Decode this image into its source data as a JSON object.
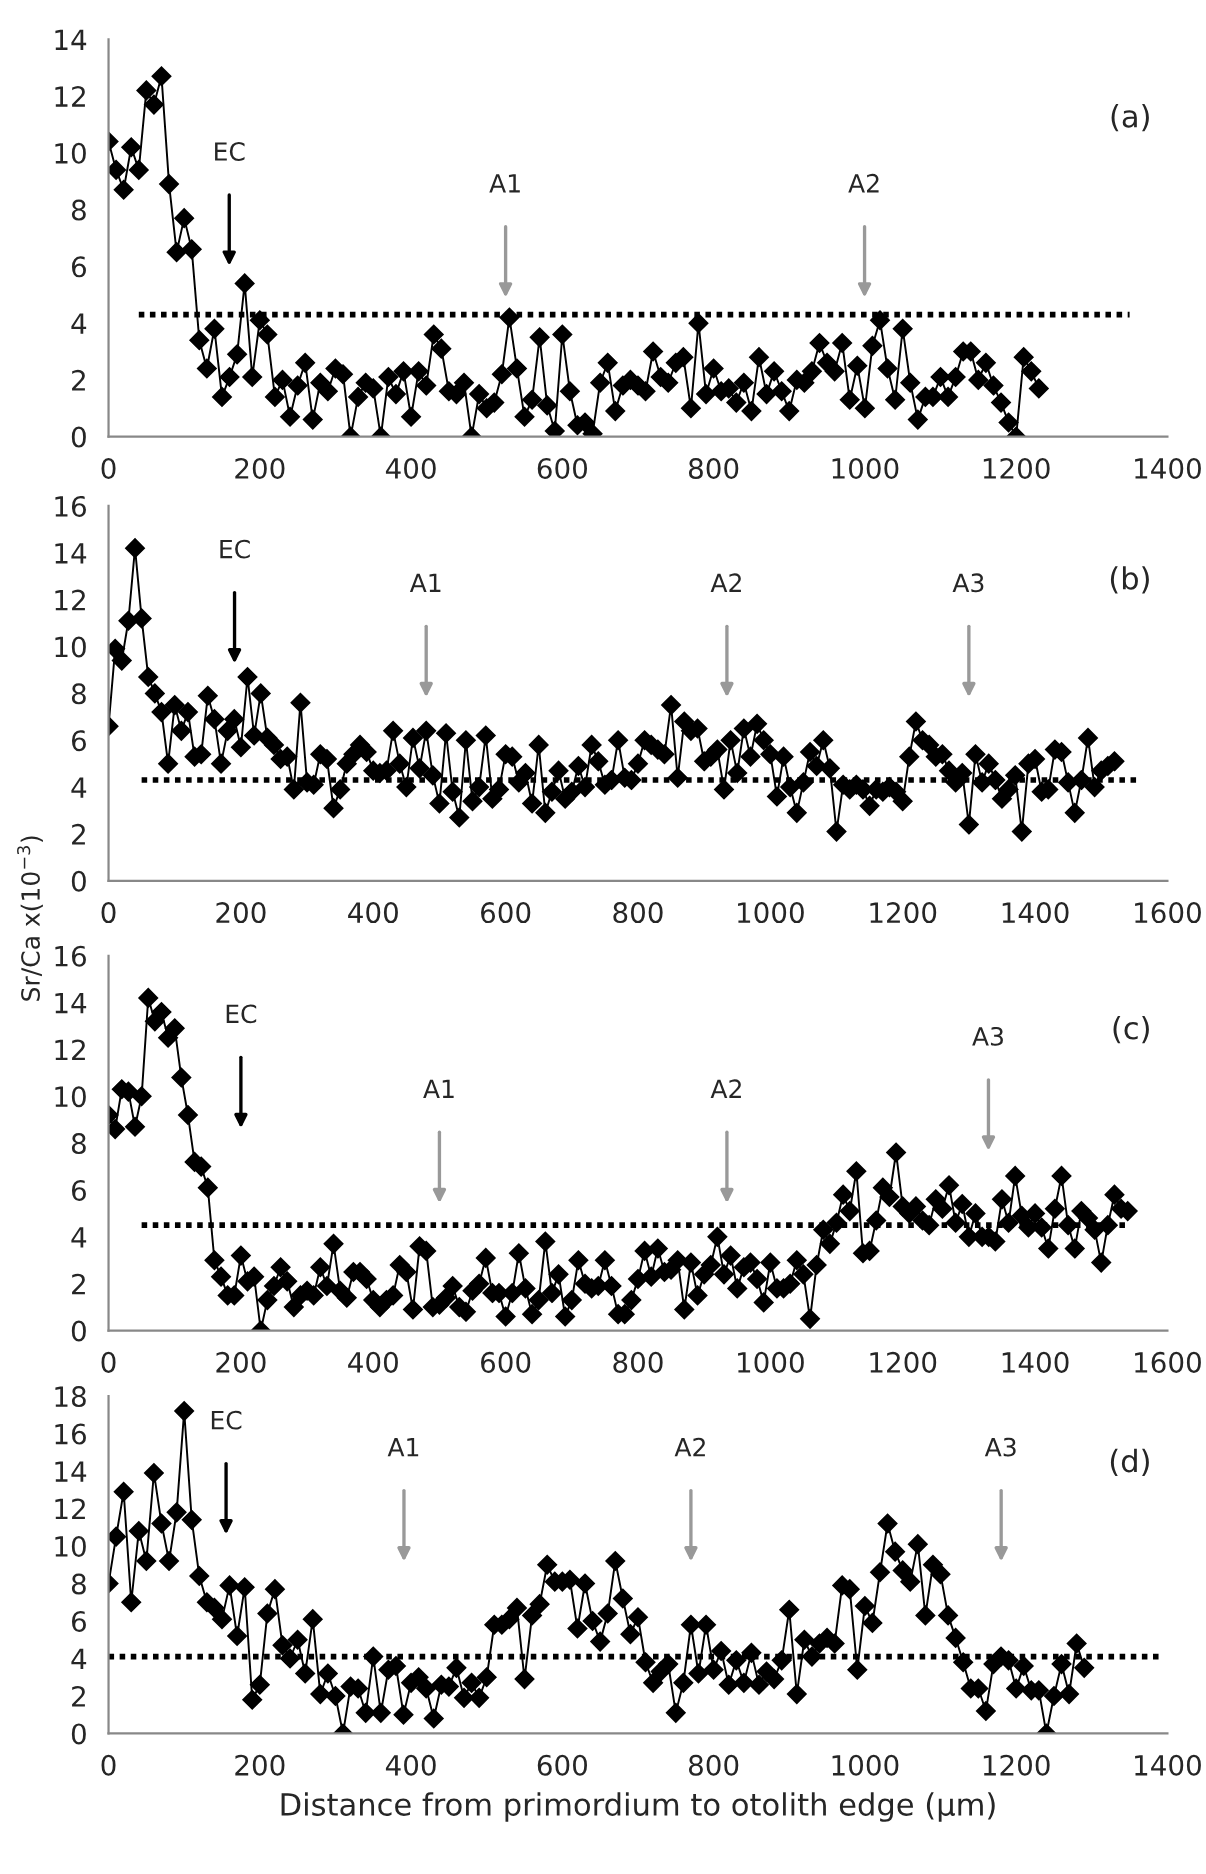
{
  "chart_data": [
    {
      "type": "line",
      "xlim": [
        0,
        1400
      ],
      "xticks": [
        0,
        200,
        400,
        600,
        800,
        1000,
        1200,
        1400
      ],
      "ylim": [
        0,
        14
      ],
      "yticks": [
        0,
        2,
        4,
        6,
        8,
        10,
        12,
        14
      ],
      "grid": false,
      "legend": false,
      "series": [
        {
          "color": "#000000",
          "marker": "diamond",
          "line_style": "solid",
          "x": [
            0,
            10,
            20,
            30,
            40,
            50,
            60,
            70,
            80,
            90,
            100,
            110,
            120,
            130,
            140,
            150,
            160,
            170,
            180,
            190,
            200,
            210,
            220,
            230,
            240,
            250,
            260,
            270,
            280,
            290,
            300,
            310,
            320,
            330,
            340,
            350,
            360,
            370,
            380,
            390,
            400,
            410,
            420,
            430,
            440,
            450,
            460,
            470,
            480,
            490,
            500,
            510,
            520,
            530,
            540,
            550,
            560,
            570,
            580,
            590,
            600,
            610,
            620,
            630,
            640,
            650,
            660,
            670,
            680,
            690,
            700,
            710,
            720,
            730,
            740,
            750,
            760,
            770,
            780,
            790,
            800,
            810,
            820,
            830,
            840,
            850,
            860,
            870,
            880,
            890,
            900,
            910,
            920,
            930,
            940,
            950,
            960,
            970,
            980,
            990,
            1000,
            1010,
            1020,
            1030,
            1040,
            1050,
            1060,
            1070,
            1080,
            1090,
            1100,
            1110,
            1120,
            1130,
            1140,
            1150,
            1160,
            1170,
            1180,
            1190,
            1200,
            1210,
            1220,
            1230
          ],
          "values": [
            10.4,
            9.4,
            8.7,
            10.2,
            9.4,
            12.2,
            11.7,
            12.7,
            8.9,
            6.5,
            7.7,
            6.6,
            3.4,
            2.4,
            3.8,
            1.4,
            2.1,
            2.9,
            5.4,
            2.1,
            4.1,
            3.6,
            1.4,
            2.0,
            0.7,
            1.8,
            2.6,
            0.6,
            1.9,
            1.6,
            2.4,
            2.2,
            0,
            1.4,
            1.9,
            1.7,
            0,
            2.1,
            1.5,
            2.3,
            0.7,
            2.3,
            1.8,
            3.6,
            3.1,
            1.6,
            1.5,
            1.9,
            0,
            1.5,
            1.0,
            1.2,
            2.2,
            4.2,
            2.4,
            0.7,
            1.3,
            3.5,
            1.1,
            0.2,
            3.6,
            1.6,
            0.4,
            0.5,
            0.1,
            1.9,
            2.6,
            0.9,
            1.8,
            2.0,
            1.8,
            1.6,
            3.0,
            2.1,
            1.9,
            2.6,
            2.8,
            1.0,
            4.0,
            1.5,
            2.4,
            1.6,
            1.7,
            1.2,
            1.9,
            0.9,
            2.8,
            1.5,
            2.3,
            1.6,
            0.9,
            2.0,
            1.9,
            2.3,
            3.3,
            2.6,
            2.3,
            3.3,
            1.3,
            2.5,
            1.0,
            3.2,
            4.1,
            2.4,
            1.3,
            3.8,
            1.9,
            0.6,
            1.4,
            1.4,
            2.1,
            1.4,
            2.1,
            3.0,
            3.0,
            2.0,
            2.6,
            1.8,
            1.2,
            0.5,
            0,
            2.8,
            2.3,
            1.7
          ]
        },
        {
          "color": "#000000",
          "marker": "none",
          "line_style": "dotted",
          "x": [
            40,
            1350
          ],
          "values": [
            4.3,
            4.3
          ]
        }
      ],
      "annotations": [
        "(a)",
        "EC",
        "A1",
        "A2"
      ]
    },
    {
      "type": "line",
      "xlim": [
        0,
        1600
      ],
      "xticks": [
        0,
        200,
        400,
        600,
        800,
        1000,
        1200,
        1400,
        1600
      ],
      "ylim": [
        0,
        16
      ],
      "yticks": [
        0,
        2,
        4,
        6,
        8,
        10,
        12,
        14,
        16
      ],
      "grid": false,
      "legend": false,
      "series": [
        {
          "type": "line",
          "color": "#000000",
          "marker": "diamond",
          "line_style": "solid",
          "x": [
            0,
            10,
            20,
            30,
            40,
            50,
            60,
            70,
            80,
            90,
            100,
            110,
            120,
            130,
            140,
            150,
            160,
            170,
            180,
            190,
            200,
            210,
            220,
            230,
            240,
            250,
            260,
            270,
            280,
            290,
            300,
            310,
            320,
            330,
            340,
            350,
            360,
            370,
            380,
            390,
            400,
            410,
            420,
            430,
            440,
            450,
            460,
            470,
            480,
            490,
            500,
            510,
            520,
            530,
            540,
            550,
            560,
            570,
            580,
            590,
            600,
            610,
            620,
            630,
            640,
            650,
            660,
            670,
            680,
            690,
            700,
            710,
            720,
            730,
            740,
            750,
            760,
            770,
            780,
            790,
            800,
            810,
            820,
            830,
            840,
            850,
            860,
            870,
            880,
            890,
            900,
            910,
            920,
            930,
            940,
            950,
            960,
            970,
            980,
            990,
            1000,
            1010,
            1020,
            1030,
            1040,
            1050,
            1060,
            1070,
            1080,
            1090,
            1100,
            1110,
            1120,
            1130,
            1140,
            1150,
            1160,
            1170,
            1180,
            1190,
            1200,
            1210,
            1220,
            1230,
            1240,
            1250,
            1260,
            1270,
            1280,
            1290,
            1300,
            1310,
            1320,
            1330,
            1340,
            1350,
            1360,
            1370,
            1380,
            1390,
            1400,
            1410,
            1420,
            1430,
            1440,
            1450,
            1460,
            1470,
            1480,
            1490,
            1500,
            1510,
            1520
          ],
          "values": [
            6.6,
            9.9,
            9.4,
            11.1,
            14.2,
            11.2,
            8.7,
            8.0,
            7.2,
            5.0,
            7.5,
            6.4,
            7.2,
            5.3,
            5.4,
            7.9,
            6.9,
            5.0,
            6.4,
            6.9,
            5.7,
            8.7,
            6.2,
            8.0,
            6.1,
            5.8,
            5.2,
            5.3,
            3.9,
            7.6,
            4.2,
            4.1,
            5.4,
            5.2,
            3.1,
            3.9,
            5.0,
            5.4,
            5.8,
            5.5,
            4.7,
            4.6,
            4.7,
            6.4,
            5.0,
            4.0,
            6.1,
            4.8,
            6.4,
            4.5,
            3.3,
            6.3,
            3.8,
            2.7,
            6.0,
            3.4,
            4.0,
            6.2,
            3.5,
            3.9,
            5.4,
            5.3,
            4.2,
            4.6,
            3.3,
            5.8,
            2.9,
            3.8,
            4.7,
            3.5,
            3.8,
            4.9,
            4.0,
            5.8,
            5.1,
            4.1,
            4.3,
            6.0,
            4.4,
            4.3,
            5.0,
            6.0,
            5.8,
            5.6,
            5.4,
            7.5,
            4.4,
            6.8,
            6.4,
            6.5,
            5.1,
            5.3,
            5.6,
            3.9,
            6.0,
            4.6,
            6.5,
            5.3,
            6.7,
            6.0,
            5.4,
            3.6,
            5.3,
            4.0,
            2.9,
            4.2,
            5.5,
            4.9,
            6.0,
            4.8,
            2.1,
            4.1,
            3.9,
            4.1,
            3.9,
            3.2,
            3.9,
            3.8,
            4.0,
            3.8,
            3.4,
            5.3,
            6.8,
            6.0,
            5.8,
            5.3,
            5.4,
            4.7,
            4.2,
            4.6,
            2.4,
            5.4,
            4.2,
            5.0,
            4.3,
            3.5,
            3.9,
            4.5,
            2.1,
            5.0,
            5.2,
            3.8,
            3.9,
            5.6,
            5.5,
            4.2,
            2.9,
            4.3,
            6.1,
            4.0,
            4.7,
            4.9,
            5.1
          ]
        },
        {
          "type": "line",
          "color": "#000000",
          "marker": "none",
          "line_style": "dotted",
          "x": [
            50,
            1560
          ],
          "values": [
            4.3,
            4.3
          ]
        }
      ],
      "annotations": [
        "(b)",
        "EC",
        "A1",
        "A2",
        "A3"
      ]
    },
    {
      "type": "line",
      "ylabel": "Sr/Ca x(10$^{−3}$)",
      "xlim": [
        0,
        1600
      ],
      "xticks": [
        0,
        200,
        400,
        600,
        800,
        1000,
        1200,
        1400,
        1600
      ],
      "ylim": [
        0,
        16
      ],
      "yticks": [
        0,
        2,
        4,
        6,
        8,
        10,
        12,
        14,
        16
      ],
      "grid": false,
      "legend": false,
      "series": [
        {
          "type": "line",
          "color": "#000000",
          "marker": "diamond",
          "line_style": "solid",
          "x": [
            0,
            10,
            20,
            30,
            40,
            50,
            60,
            70,
            80,
            90,
            100,
            110,
            120,
            130,
            140,
            150,
            160,
            170,
            180,
            190,
            200,
            210,
            220,
            230,
            240,
            250,
            260,
            270,
            280,
            290,
            300,
            310,
            320,
            330,
            340,
            350,
            360,
            370,
            380,
            390,
            400,
            410,
            420,
            430,
            440,
            450,
            460,
            470,
            480,
            490,
            500,
            510,
            520,
            530,
            540,
            550,
            560,
            570,
            580,
            590,
            600,
            610,
            620,
            630,
            640,
            650,
            660,
            670,
            680,
            690,
            700,
            710,
            720,
            730,
            740,
            750,
            760,
            770,
            780,
            790,
            800,
            810,
            820,
            830,
            840,
            850,
            860,
            870,
            880,
            890,
            900,
            910,
            920,
            930,
            940,
            950,
            960,
            970,
            980,
            990,
            1000,
            1010,
            1020,
            1030,
            1040,
            1050,
            1060,
            1070,
            1080,
            1090,
            1100,
            1110,
            1120,
            1130,
            1140,
            1150,
            1160,
            1170,
            1180,
            1190,
            1200,
            1210,
            1220,
            1230,
            1240,
            1250,
            1260,
            1270,
            1280,
            1290,
            1300,
            1310,
            1320,
            1330,
            1340,
            1350,
            1360,
            1370,
            1380,
            1390,
            1400,
            1410,
            1420,
            1430,
            1440,
            1450,
            1460,
            1470,
            1480,
            1490,
            1500,
            1510,
            1520,
            1530,
            1540
          ],
          "values": [
            9.2,
            8.6,
            10.3,
            10.2,
            8.7,
            10.0,
            14.2,
            13.2,
            13.6,
            12.5,
            12.9,
            10.8,
            9.2,
            7.2,
            7.0,
            6.1,
            3.0,
            2.3,
            1.5,
            1.5,
            3.2,
            2.1,
            2.3,
            0,
            1.3,
            1.9,
            2.7,
            2.1,
            1.0,
            1.5,
            1.7,
            1.5,
            2.7,
            1.9,
            3.7,
            1.7,
            1.4,
            2.5,
            2.5,
            2.2,
            1.3,
            1.0,
            1.3,
            1.5,
            2.8,
            2.5,
            0.9,
            3.6,
            3.4,
            1.0,
            1.1,
            1.4,
            1.9,
            1.0,
            0.8,
            1.7,
            2.0,
            3.1,
            1.6,
            1.6,
            0.6,
            1.6,
            3.3,
            1.8,
            0.7,
            1.3,
            3.8,
            1.6,
            2.4,
            0.6,
            1.3,
            3.0,
            2.0,
            1.8,
            1.9,
            3.0,
            1.9,
            0.7,
            0.7,
            1.3,
            2.2,
            3.4,
            2.3,
            3.5,
            2.5,
            2.6,
            3.0,
            0.9,
            2.9,
            1.5,
            2.4,
            2.8,
            4.0,
            2.4,
            3.2,
            1.8,
            2.7,
            2.9,
            2.2,
            1.2,
            2.9,
            1.8,
            1.8,
            2.0,
            3.0,
            2.4,
            0.5,
            2.8,
            4.3,
            3.7,
            4.6,
            5.8,
            5.1,
            6.8,
            3.3,
            3.4,
            4.7,
            6.1,
            5.7,
            7.6,
            5.3,
            5.0,
            5.3,
            4.7,
            4.5,
            5.6,
            5.2,
            6.2,
            4.6,
            5.4,
            4.0,
            5.0,
            4.0,
            4.0,
            3.8,
            5.6,
            4.6,
            6.6,
            4.9,
            4.4,
            5.0,
            4.4,
            3.5,
            5.2,
            6.6,
            4.5,
            3.5,
            5.1,
            4.8,
            4.3,
            2.9,
            4.5,
            5.8,
            5.2,
            5.1
          ]
        },
        {
          "type": "line",
          "color": "#000000",
          "marker": "none",
          "line_style": "dotted",
          "x": [
            50,
            1540
          ],
          "values": [
            4.5,
            4.5
          ]
        }
      ],
      "annotations": [
        "(c)",
        "EC",
        "A1",
        "A2",
        "A3"
      ]
    },
    {
      "type": "line",
      "xlabel": "Distance from primordium to otolith edge (µm)",
      "xlim": [
        0,
        1400
      ],
      "xticks": [
        0,
        200,
        400,
        600,
        800,
        1000,
        1200,
        1400
      ],
      "ylim": [
        0,
        18
      ],
      "yticks": [
        0,
        2,
        4,
        6,
        8,
        10,
        12,
        14,
        16,
        18
      ],
      "grid": false,
      "legend": false,
      "series": [
        {
          "type": "line",
          "color": "#000000",
          "marker": "diamond",
          "line_style": "solid",
          "x": [
            0,
            10,
            20,
            30,
            40,
            50,
            60,
            70,
            80,
            90,
            100,
            110,
            120,
            130,
            140,
            150,
            160,
            170,
            180,
            190,
            200,
            210,
            220,
            230,
            240,
            250,
            260,
            270,
            280,
            290,
            300,
            310,
            320,
            330,
            340,
            350,
            360,
            370,
            380,
            390,
            400,
            410,
            420,
            430,
            440,
            450,
            460,
            470,
            480,
            490,
            500,
            510,
            520,
            530,
            540,
            550,
            560,
            570,
            580,
            590,
            600,
            610,
            620,
            630,
            640,
            650,
            660,
            670,
            680,
            690,
            700,
            710,
            720,
            730,
            740,
            750,
            760,
            770,
            780,
            790,
            800,
            810,
            820,
            830,
            840,
            850,
            860,
            870,
            880,
            890,
            900,
            910,
            920,
            930,
            940,
            950,
            960,
            970,
            980,
            990,
            1000,
            1010,
            1020,
            1030,
            1040,
            1050,
            1060,
            1070,
            1080,
            1090,
            1100,
            1110,
            1120,
            1130,
            1140,
            1150,
            1160,
            1170,
            1180,
            1190,
            1200,
            1210,
            1220,
            1230,
            1240,
            1250,
            1260,
            1270,
            1280,
            1290
          ],
          "values": [
            8.0,
            10.5,
            12.9,
            7.0,
            10.8,
            9.2,
            13.9,
            11.2,
            9.2,
            11.8,
            17.2,
            11.4,
            8.4,
            7.0,
            6.7,
            6.1,
            7.9,
            5.2,
            7.8,
            1.8,
            2.6,
            6.4,
            7.7,
            4.7,
            4.0,
            5.0,
            3.2,
            6.1,
            2.1,
            3.2,
            2.0,
            0,
            2.5,
            2.4,
            1.1,
            4.1,
            1.1,
            3.4,
            3.6,
            1.0,
            2.7,
            3.0,
            2.4,
            0.8,
            2.6,
            2.5,
            3.5,
            1.9,
            2.7,
            1.9,
            3.0,
            5.8,
            5.8,
            6.1,
            6.7,
            2.9,
            6.3,
            6.9,
            9.0,
            8.1,
            8.1,
            8.2,
            5.6,
            8.0,
            6.0,
            4.9,
            6.4,
            9.2,
            7.2,
            5.3,
            6.2,
            3.8,
            2.7,
            3.3,
            3.7,
            1.1,
            2.7,
            5.8,
            3.2,
            5.8,
            3.4,
            4.4,
            2.6,
            3.9,
            2.7,
            4.3,
            2.6,
            3.3,
            2.9,
            3.9,
            6.6,
            2.1,
            5.0,
            4.1,
            4.8,
            5.1,
            4.8,
            7.9,
            7.7,
            3.4,
            6.8,
            5.9,
            8.6,
            11.2,
            9.7,
            8.7,
            8.1,
            10.1,
            6.3,
            9.0,
            8.5,
            6.3,
            5.1,
            3.8,
            2.4,
            2.4,
            1.2,
            3.7,
            4.1,
            3.9,
            2.4,
            3.6,
            2.3,
            2.3,
            0,
            2.0,
            3.7,
            2.1,
            4.8,
            3.5
          ]
        },
        {
          "type": "line",
          "color": "#000000",
          "marker": "none",
          "line_style": "dotted",
          "x": [
            0,
            1390
          ],
          "values": [
            4.1,
            4.1
          ]
        }
      ],
      "annotations": [
        "(d)",
        "EC",
        "A1",
        "A2",
        "A3"
      ]
    }
  ]
}
